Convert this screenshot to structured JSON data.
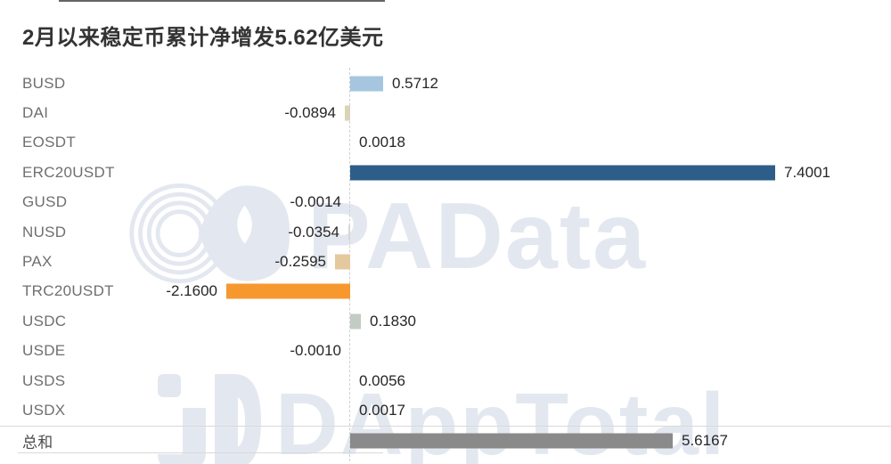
{
  "title": "2月以来稳定币累计净增发5.62亿美元",
  "watermarks": {
    "center": "PAData",
    "bottom": "DAppTotal"
  },
  "colors": {
    "title_text": "#333333",
    "category_text": "#6f6f6f",
    "value_text": "#262626",
    "axis_dash": "#cfcfcf",
    "watermark": "#e3e8f0",
    "positive_highlight": "#2d5e89",
    "negative_highlight": "#f7982e",
    "total_bar": "#8a8a8a"
  },
  "chart_data": {
    "type": "bar",
    "orientation": "horizontal",
    "title": "2月以来稳定币累计净增发5.62亿美元",
    "unit": "亿美元",
    "categories": [
      "BUSD",
      "DAI",
      "EOSDT",
      "ERC20USDT",
      "GUSD",
      "NUSD",
      "PAX",
      "TRC20USDT",
      "USDC",
      "USDE",
      "USDS",
      "USDX",
      "总和"
    ],
    "values": [
      0.5712,
      -0.0894,
      0.0018,
      7.4001,
      -0.0014,
      -0.0354,
      -0.2595,
      -2.16,
      0.183,
      -0.001,
      0.0056,
      0.0017,
      5.6167
    ],
    "value_labels": [
      "0.5712",
      "-0.0894",
      "0.0018",
      "7.4001",
      "-0.0014",
      "-0.0354",
      "-0.2595",
      "-2.1600",
      "0.1830",
      "-0.0010",
      "0.0056",
      "0.0017",
      "5.6167"
    ],
    "bar_colors": [
      "#a5c6de",
      "#dcd2b6",
      "#a5c6de",
      "#2d5e89",
      "#d9d9d9",
      "#d6d6d6",
      "#e5c99e",
      "#f7982e",
      "#c2cbc4",
      "#d9d9d9",
      "#d9d9d9",
      "#d9d9d9",
      "#8a8a8a"
    ],
    "xlim": [
      -2.5,
      8.2
    ],
    "grid": false,
    "legend": false,
    "zero_axis_style": "dashed"
  }
}
